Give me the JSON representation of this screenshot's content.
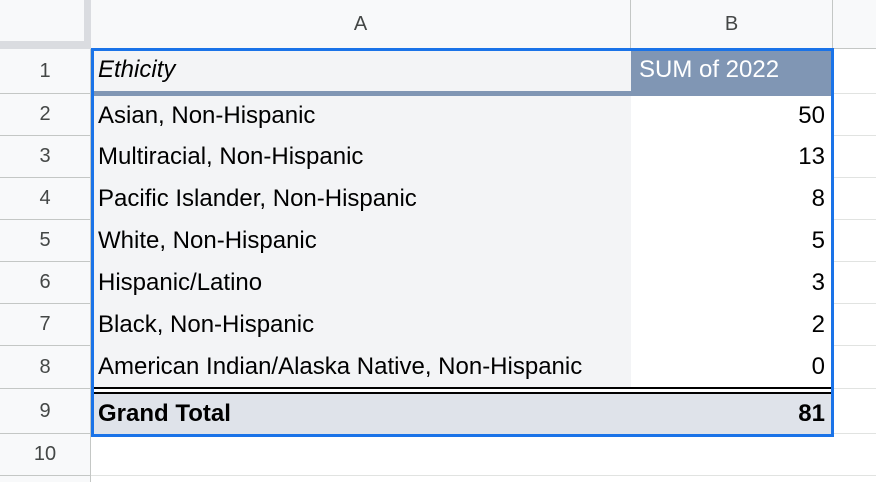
{
  "columns": {
    "a": "A",
    "b": "B"
  },
  "row_numbers": [
    "1",
    "2",
    "3",
    "4",
    "5",
    "6",
    "7",
    "8",
    "9",
    "10"
  ],
  "header": {
    "label": "Ethicity",
    "value_label": "SUM of 2022"
  },
  "rows": [
    {
      "label": "Asian, Non-Hispanic",
      "value": "50"
    },
    {
      "label": "Multiracial, Non-Hispanic",
      "value": "13"
    },
    {
      "label": "Pacific Islander, Non-Hispanic",
      "value": "8"
    },
    {
      "label": "White, Non-Hispanic",
      "value": "5"
    },
    {
      "label": "Hispanic/Latino",
      "value": "3"
    },
    {
      "label": "Black, Non-Hispanic",
      "value": "2"
    },
    {
      "label": "American Indian/Alaska Native, Non-Hispanic",
      "value": "0"
    }
  ],
  "total": {
    "label": "Grand Total",
    "value": "81"
  },
  "colors": {
    "header_bg": "#8096b4",
    "selection": "#1a73e8",
    "total_bg": "#dfe3ea"
  }
}
